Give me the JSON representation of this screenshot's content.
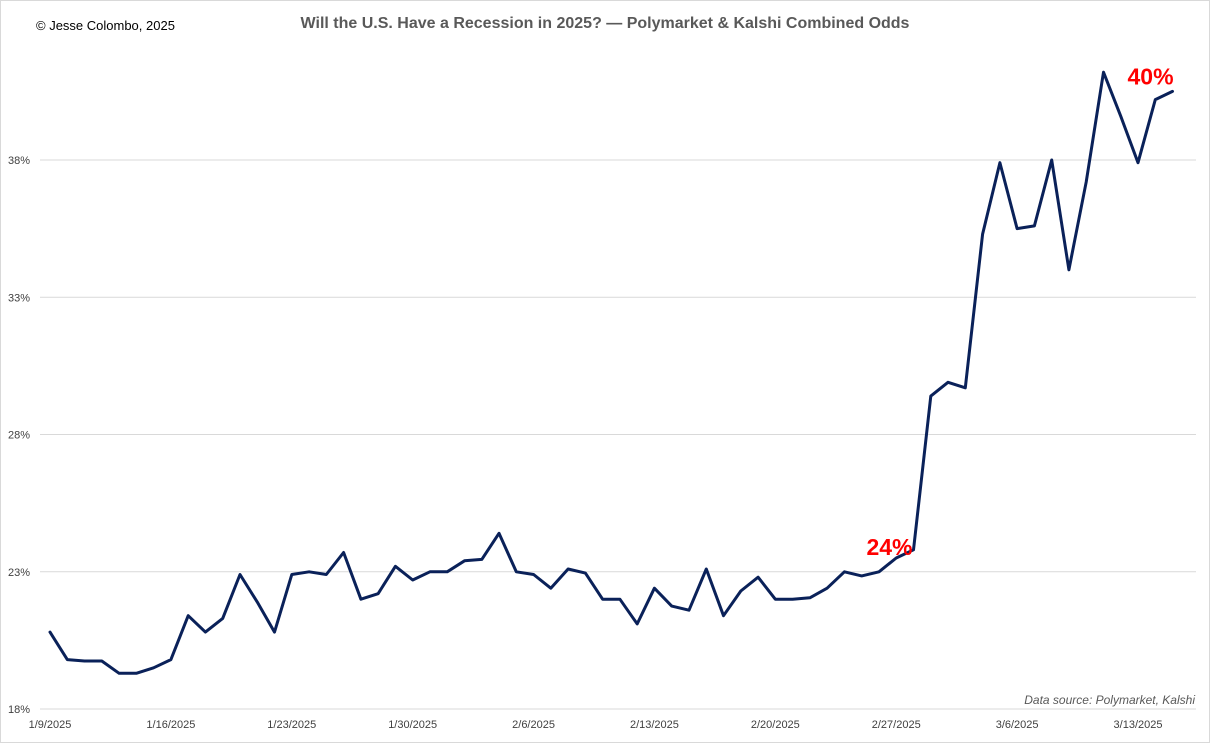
{
  "copyright": "© Jesse Colombo, 2025",
  "source": "Data source: Polymarket, Kalshi",
  "colors": {
    "line": "#0a2159",
    "callout": "#ff0000",
    "grid": "#d9d9d9"
  },
  "chart_data": {
    "type": "line",
    "title": "Will the U.S. Have a Recession in 2025? — Polymarket & Kalshi Combined Odds",
    "xlabel": "",
    "ylabel": "",
    "ylim": [
      18,
      38
    ],
    "y_ticks": [
      18,
      23,
      28,
      33,
      38
    ],
    "y_tick_labels": [
      "18%",
      "23%",
      "28%",
      "33%",
      "38%"
    ],
    "x_tick_labels": [
      "1/9/2025",
      "1/16/2025",
      "1/23/2025",
      "1/30/2025",
      "2/6/2025",
      "2/13/2025",
      "2/20/2025",
      "2/27/2025",
      "3/6/2025",
      "3/13/2025"
    ],
    "grid": true,
    "legend": "none",
    "series": [
      {
        "values": [
          20.8,
          19.8,
          19.75,
          19.75,
          19.3,
          19.3,
          19.5,
          19.8,
          21.4,
          20.8,
          21.3,
          22.9,
          21.9,
          20.8,
          22.9,
          23.0,
          22.9,
          23.7,
          22.0,
          22.2,
          23.2,
          22.7,
          23.0,
          23.0,
          23.4,
          23.45,
          24.4,
          23.0,
          22.9,
          22.4,
          23.1,
          22.95,
          22.0,
          22.0,
          21.1,
          22.4,
          21.75,
          21.6,
          23.1,
          21.4,
          22.3,
          22.8,
          22.0,
          22.0,
          22.05,
          22.4,
          23.0,
          22.85,
          23.0,
          23.5,
          23.8,
          29.4,
          29.9,
          29.7,
          35.3,
          37.9,
          35.5,
          35.6,
          38.0,
          34.0,
          37.2,
          41.2,
          39.6,
          37.9,
          40.2,
          40.5
        ]
      }
    ],
    "annotations": [
      {
        "text": "24%",
        "index": 50
      },
      {
        "text": "40%",
        "index": 65
      }
    ]
  }
}
